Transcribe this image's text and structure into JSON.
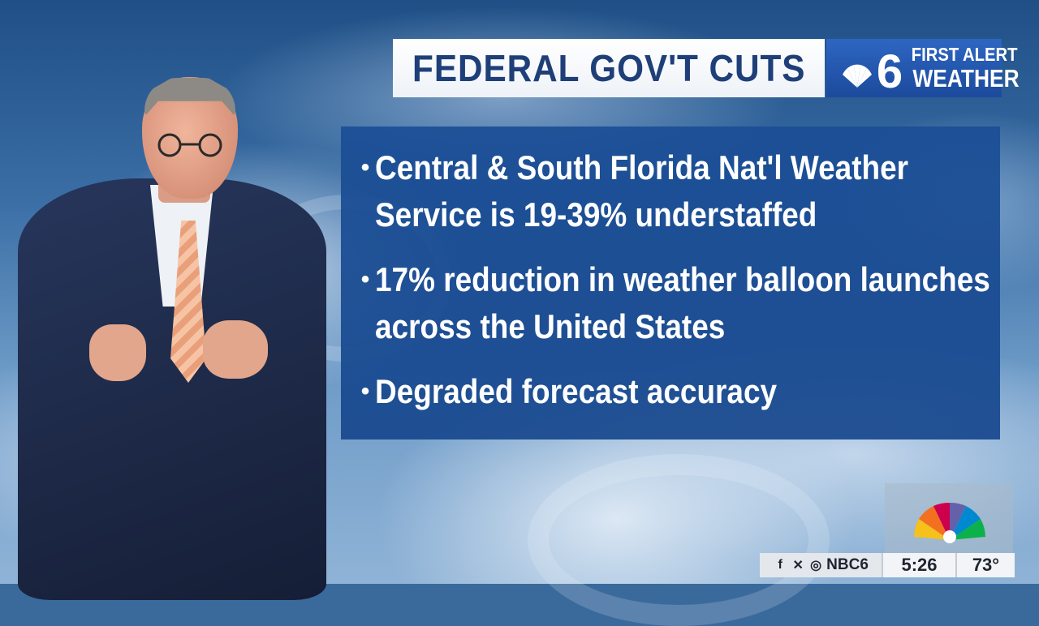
{
  "headline": "FEDERAL GOV'T CUTS",
  "brand": {
    "channel_number": "6",
    "line1": "FIRST ALERT",
    "line2": "WEATHER",
    "logo_icon": "nbc-peacock-6-icon"
  },
  "bullets": [
    {
      "text": "Central & South Florida Nat'l Weather Service is 19-39% understaffed"
    },
    {
      "text": "17% reduction in weather balloon launches across the United States"
    },
    {
      "text": "Degraded forecast accuracy"
    }
  ],
  "bullet_symbol": "•",
  "bug": {
    "logo_icon": "nbc-peacock-icon",
    "social_icons": [
      "facebook-icon",
      "x-icon",
      "instagram-icon"
    ],
    "handle": "NBC6",
    "time": "5:26",
    "temperature": "73°"
  },
  "colors": {
    "headline_text": "#1e3f78",
    "brand_bg": "#1c4a9c",
    "panel_bg": "#1b4e96",
    "bullet_text": "#ffffff"
  }
}
